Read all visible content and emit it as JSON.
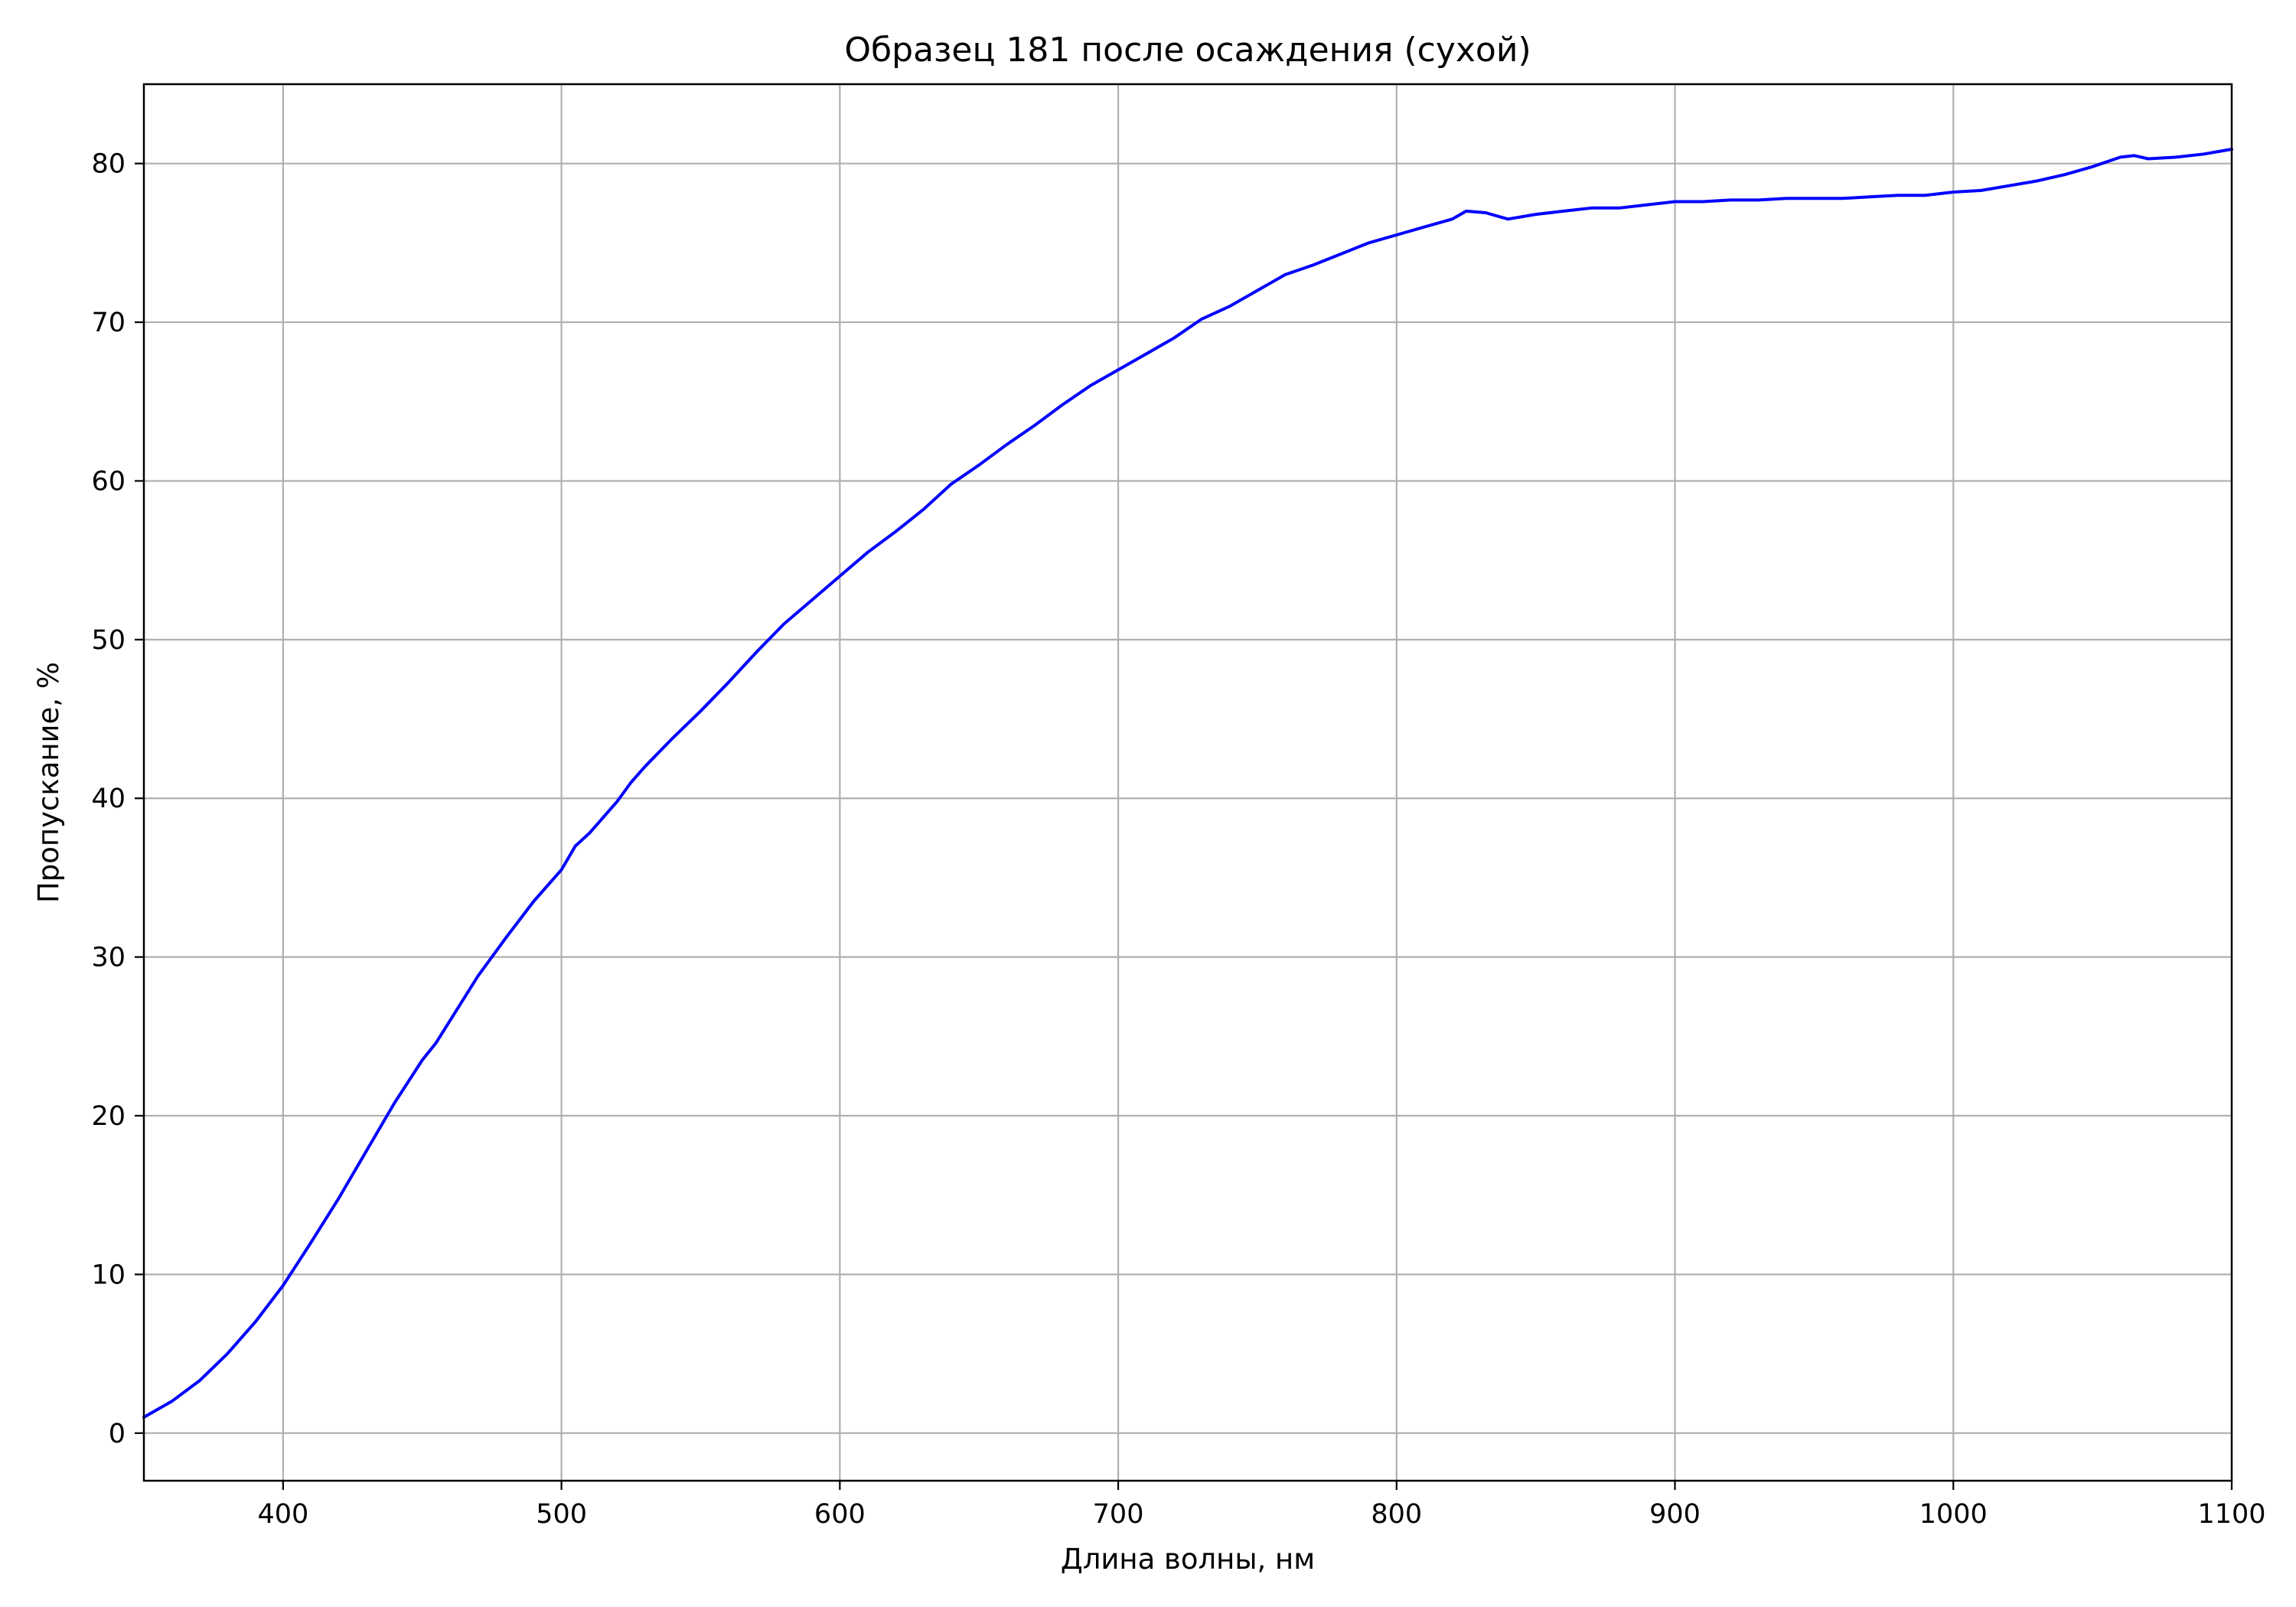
{
  "chart_data": {
    "type": "line",
    "title": "Образец 181 после осаждения (сухой)",
    "xlabel": "Длина волны, нм",
    "ylabel": "Пропускание, %",
    "xlim": [
      350,
      1100
    ],
    "ylim": [
      -3,
      85
    ],
    "x_ticks": [
      400,
      500,
      600,
      700,
      800,
      900,
      1000,
      1100
    ],
    "y_ticks": [
      0,
      10,
      20,
      30,
      40,
      50,
      60,
      70,
      80
    ],
    "grid": true,
    "legend": "none",
    "series": [
      {
        "color": "#0000ff",
        "x": [
          350,
          360,
          370,
          380,
          390,
          400,
          410,
          420,
          430,
          440,
          450,
          455,
          460,
          470,
          480,
          490,
          500,
          505,
          510,
          520,
          525,
          530,
          540,
          550,
          560,
          570,
          580,
          590,
          600,
          610,
          620,
          630,
          640,
          650,
          660,
          670,
          680,
          690,
          700,
          710,
          720,
          730,
          740,
          750,
          760,
          770,
          780,
          790,
          800,
          810,
          820,
          825,
          832,
          840,
          850,
          860,
          870,
          880,
          890,
          900,
          910,
          920,
          930,
          940,
          950,
          960,
          970,
          980,
          990,
          1000,
          1010,
          1020,
          1030,
          1040,
          1050,
          1060,
          1065,
          1070,
          1080,
          1090,
          1100
        ],
        "y": [
          1.0,
          2.0,
          3.3,
          5.0,
          7.0,
          9.3,
          12.0,
          14.8,
          17.8,
          20.8,
          23.5,
          24.6,
          26.0,
          28.8,
          31.2,
          33.5,
          35.5,
          37.0,
          37.8,
          39.8,
          41.0,
          42.0,
          43.8,
          45.5,
          47.3,
          49.2,
          51.0,
          52.5,
          54.0,
          55.5,
          56.8,
          58.2,
          59.8,
          61.0,
          62.3,
          63.5,
          64.8,
          66.0,
          67.0,
          68.0,
          69.0,
          70.2,
          71.0,
          72.0,
          73.0,
          73.6,
          74.3,
          75.0,
          75.5,
          76.0,
          76.5,
          77.0,
          76.9,
          76.5,
          76.8,
          77.0,
          77.2,
          77.2,
          77.4,
          77.6,
          77.6,
          77.7,
          77.7,
          77.8,
          77.8,
          77.8,
          77.9,
          78.0,
          78.0,
          78.2,
          78.3,
          78.6,
          78.9,
          79.3,
          79.8,
          80.4,
          80.5,
          80.3,
          80.4,
          80.6,
          80.9
        ]
      }
    ]
  }
}
